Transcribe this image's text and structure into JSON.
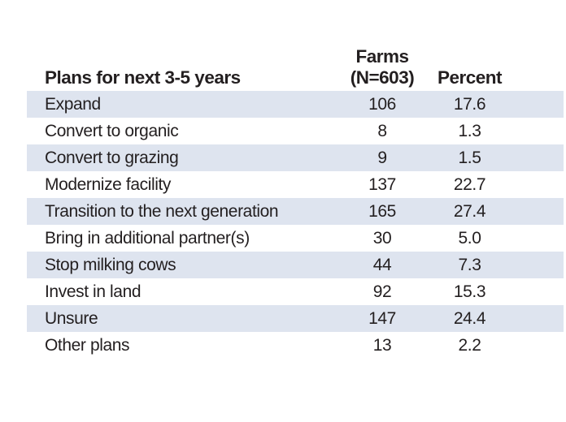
{
  "table": {
    "header": {
      "plans": "Plans for next 3-5 years",
      "farms_line1": "Farms",
      "farms_line2": "(N=603)",
      "percent": "Percent"
    },
    "rows": [
      {
        "plan": "Expand",
        "farms": "106",
        "percent": "17.6"
      },
      {
        "plan": "Convert to organic",
        "farms": "8",
        "percent": "1.3"
      },
      {
        "plan": "Convert to grazing",
        "farms": "9",
        "percent": "1.5"
      },
      {
        "plan": "Modernize facility",
        "farms": "137",
        "percent": "22.7"
      },
      {
        "plan": "Transition to the next generation",
        "farms": "165",
        "percent": "27.4"
      },
      {
        "plan": "Bring in additional partner(s)",
        "farms": "30",
        "percent": "5.0"
      },
      {
        "plan": "Stop milking cows",
        "farms": "44",
        "percent": "7.3"
      },
      {
        "plan": "Invest in land",
        "farms": "92",
        "percent": "15.3"
      },
      {
        "plan": "Unsure",
        "farms": "147",
        "percent": "24.4"
      },
      {
        "plan": "Other plans",
        "farms": "13",
        "percent": "2.2"
      }
    ],
    "colors": {
      "row_shade": "#dee4ef",
      "text": "#231f20",
      "background": "#ffffff"
    }
  },
  "chart_data": {
    "type": "table",
    "title": "Plans for next 3-5 years",
    "columns": [
      "Plans for next 3-5 years",
      "Farms (N=603)",
      "Percent"
    ],
    "n": 603,
    "categories": [
      "Expand",
      "Convert to organic",
      "Convert to grazing",
      "Modernize facility",
      "Transition to the next generation",
      "Bring in additional partner(s)",
      "Stop milking cows",
      "Invest in land",
      "Unsure",
      "Other plans"
    ],
    "series": [
      {
        "name": "Farms (N=603)",
        "values": [
          106,
          8,
          9,
          137,
          165,
          30,
          44,
          92,
          147,
          13
        ]
      },
      {
        "name": "Percent",
        "values": [
          17.6,
          1.3,
          1.5,
          22.7,
          27.4,
          5.0,
          7.3,
          15.3,
          24.4,
          2.2
        ]
      }
    ],
    "layout_hints": {
      "alternating_row_shading": true,
      "shaded_rows_start_with_first": true,
      "numeric_columns_centered": true
    }
  }
}
